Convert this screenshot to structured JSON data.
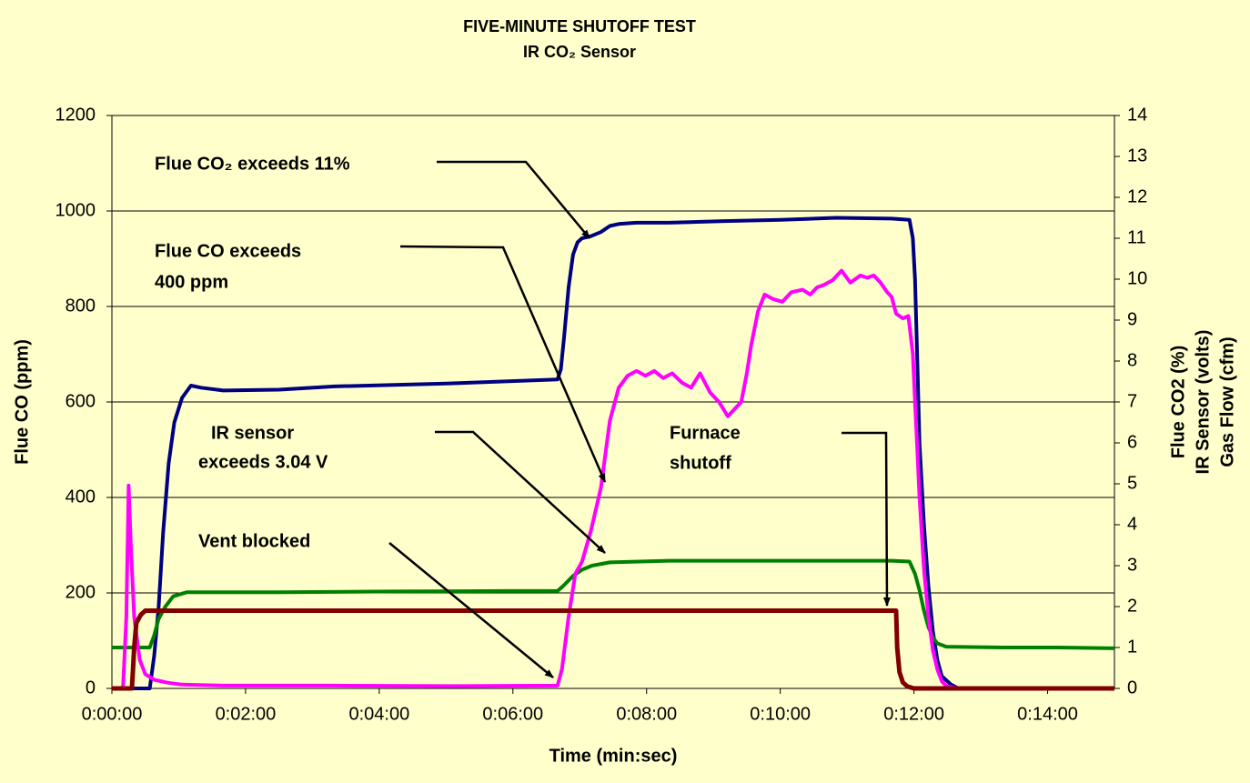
{
  "chart_data": {
    "type": "line",
    "title": "FIVE-MINUTE SHUTOFF TEST",
    "subtitle": "IR CO₂ Sensor",
    "xlabel": "Time (min:sec)",
    "ylabel": "Flue CO (ppm)",
    "y2label": [
      "Flue CO2 (%)",
      "IR Sensor (volts)",
      "Gas Flow (cfm)"
    ],
    "xlim": [
      0,
      900
    ],
    "xticks": [
      {
        "value": 0,
        "label": "0:00:00"
      },
      {
        "value": 120,
        "label": "0:02:00"
      },
      {
        "value": 240,
        "label": "0:04:00"
      },
      {
        "value": 360,
        "label": "0:06:00"
      },
      {
        "value": 480,
        "label": "0:08:00"
      },
      {
        "value": 600,
        "label": "0:10:00"
      },
      {
        "value": 720,
        "label": "0:12:00"
      },
      {
        "value": 840,
        "label": "0:14:00"
      }
    ],
    "ylim": [
      0,
      1200
    ],
    "yticks": [
      0,
      200,
      400,
      600,
      800,
      1000,
      1200
    ],
    "y2lim": [
      0,
      14
    ],
    "y2ticks": [
      0,
      1,
      2,
      3,
      4,
      5,
      6,
      7,
      8,
      9,
      10,
      11,
      12,
      13,
      14
    ],
    "grid": true,
    "series": [
      {
        "color": "#000080",
        "axis": "y2",
        "x": [
          0,
          34,
          38,
          42,
          46,
          51,
          56,
          63,
          71,
          80,
          100,
          150,
          200,
          300,
          400,
          403,
          406,
          410,
          414,
          418,
          422,
          430,
          439,
          447,
          455,
          471,
          500,
          550,
          600,
          650,
          700,
          716,
          719,
          721,
          723,
          725,
          729,
          733,
          737,
          741,
          745,
          753,
          760,
          900
        ],
        "values": [
          0,
          0,
          0.8,
          2,
          3.8,
          5.5,
          6.5,
          7.1,
          7.4,
          7.35,
          7.28,
          7.3,
          7.38,
          7.45,
          7.55,
          7.8,
          8.6,
          9.8,
          10.6,
          10.9,
          11.0,
          11.05,
          11.15,
          11.3,
          11.35,
          11.38,
          11.38,
          11.42,
          11.45,
          11.5,
          11.48,
          11.45,
          11,
          10,
          8,
          6,
          4,
          2.5,
          1.4,
          0.7,
          0.3,
          0.1,
          0,
          0
        ]
      },
      {
        "color": "#008000",
        "axis": "y2",
        "x": [
          0,
          34,
          38,
          42,
          48,
          55,
          67,
          150,
          250,
          350,
          400,
          405,
          414,
          422,
          431,
          447,
          500,
          600,
          700,
          716,
          721,
          725,
          729,
          733,
          737,
          741,
          749,
          800,
          850,
          900
        ],
        "values": [
          1.0,
          1.0,
          1.3,
          1.7,
          2.0,
          2.25,
          2.35,
          2.35,
          2.37,
          2.38,
          2.38,
          2.5,
          2.75,
          2.9,
          3.0,
          3.08,
          3.12,
          3.12,
          3.12,
          3.1,
          2.8,
          2.4,
          1.9,
          1.5,
          1.25,
          1.1,
          1.02,
          1.0,
          1.0,
          0.98
        ]
      },
      {
        "color": "#FF00FF",
        "axis": "y",
        "x": [
          0,
          10,
          13,
          15,
          17,
          20,
          25,
          30,
          38,
          50,
          63,
          100,
          200,
          300,
          400,
          404,
          410,
          416,
          422,
          430,
          439,
          447,
          455,
          463,
          471,
          479,
          487,
          495,
          503,
          512,
          520,
          528,
          537,
          545,
          553,
          561,
          565,
          570,
          574,
          580,
          586,
          594,
          602,
          610,
          620,
          627,
          633,
          639,
          647,
          655,
          663,
          672,
          678,
          684,
          690,
          696,
          700,
          704,
          710,
          715,
          719,
          721,
          723,
          725,
          729,
          733,
          737,
          741,
          745,
          749,
          760,
          900
        ],
        "values": [
          0,
          0,
          150,
          425,
          300,
          150,
          60,
          30,
          18,
          12,
          8,
          6,
          6,
          5,
          6,
          40,
          150,
          240,
          265,
          330,
          420,
          560,
          630,
          655,
          665,
          655,
          665,
          650,
          660,
          640,
          630,
          660,
          620,
          600,
          570,
          590,
          600,
          660,
          720,
          790,
          825,
          815,
          810,
          830,
          835,
          825,
          840,
          845,
          855,
          875,
          850,
          865,
          860,
          865,
          850,
          830,
          820,
          785,
          775,
          780,
          700,
          600,
          500,
          400,
          250,
          150,
          80,
          40,
          15,
          5,
          0,
          0
        ]
      },
      {
        "color": "#800000",
        "axis": "y2",
        "x": [
          0,
          18,
          19,
          20,
          22,
          26,
          30,
          100,
          400,
          704,
          705,
          707,
          710,
          714,
          720,
          900
        ],
        "values": [
          0,
          0,
          0.5,
          1.0,
          1.6,
          1.8,
          1.9,
          1.9,
          1.9,
          1.9,
          1.0,
          0.4,
          0.15,
          0.05,
          0,
          0
        ]
      }
    ],
    "annotations": [
      {
        "lines": [
          "Flue CO₂ exceeds 11%"
        ]
      },
      {
        "lines": [
          "Flue CO exceeds",
          "400 ppm"
        ]
      },
      {
        "lines": [
          "IR sensor",
          "exceeds 3.04 V"
        ]
      },
      {
        "lines": [
          "Vent blocked"
        ]
      },
      {
        "lines": [
          "Furnace",
          "shutoff"
        ]
      }
    ]
  }
}
